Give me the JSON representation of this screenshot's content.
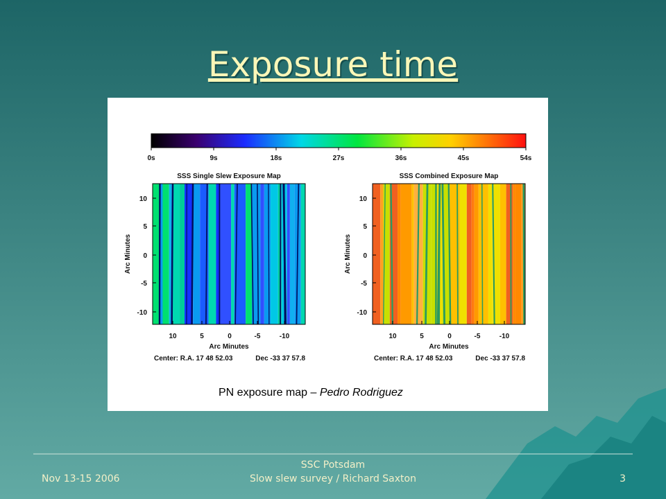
{
  "title": "Exposure time",
  "figure": {
    "colorbar_ticks": [
      "0s",
      "9s",
      "18s",
      "27s",
      "36s",
      "45s",
      "54s"
    ],
    "panels": [
      {
        "title": "SSS Single Slew Exposure Map",
        "y_label": "Arc Minutes",
        "y_ticks": [
          "10",
          "5",
          "0",
          "-5",
          "-10"
        ],
        "x_ticks": [
          "10",
          "5",
          "0",
          "-5",
          "-10"
        ],
        "x_label": "Arc Minutes",
        "center": "Center: R.A. 17 48 52.03",
        "dec": "Dec -33 37 57.8"
      },
      {
        "title": "SSS Combined Exposure Map",
        "y_label": "Arc Minutes",
        "y_ticks": [
          "10",
          "5",
          "0",
          "-5",
          "-10"
        ],
        "x_ticks": [
          "10",
          "5",
          "0",
          "-5",
          "-10"
        ],
        "x_label": "Arc Minutes",
        "center": "Center: R.A. 17 48 52.03",
        "dec": "Dec -33 37 57.8"
      }
    ]
  },
  "caption": {
    "text": "PN exposure map – ",
    "author": "Pedro Rodriguez"
  },
  "footer": {
    "date": "Nov 13-15 2006",
    "venue": "SSC Potsdam",
    "talk": "Slow slew survey / Richard Saxton",
    "page": "3"
  }
}
